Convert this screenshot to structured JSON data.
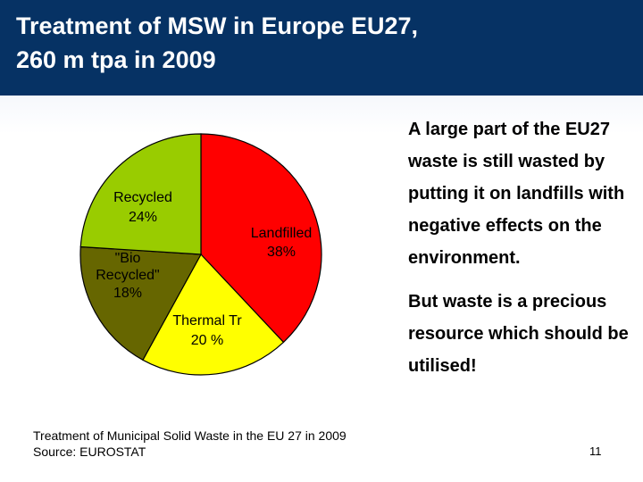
{
  "slide": {
    "title": "Treatment of MSW in Europe EU27,\n260 m tpa in 2009",
    "caption_line1": "Treatment of Municipal Solid Waste in the EU 27 in 2009",
    "caption_line2": "Source: EUROSTAT",
    "message_para1": "A large part of the EU27 waste is still wasted by putting it on landfills with negative effects on the environment.",
    "message_para2": "But waste is a precious resource which should be utilised!",
    "page_number": "11"
  },
  "chart_data": {
    "type": "pie",
    "slices": [
      {
        "label": "Landfilled",
        "value_label": "38%",
        "value": 38,
        "color": "#ff0000"
      },
      {
        "label": "Thermal Tr",
        "value_label": "20 %",
        "value": 20,
        "color": "#ffff00"
      },
      {
        "label": "\"Bio Recycled\"",
        "value_label": "18%",
        "value": 18,
        "color": "#666600"
      },
      {
        "label": "Recycled",
        "value_label": "24%",
        "value": 24,
        "color": "#99cc00"
      }
    ],
    "start_angle_deg": 0,
    "direction": "clockwise"
  }
}
